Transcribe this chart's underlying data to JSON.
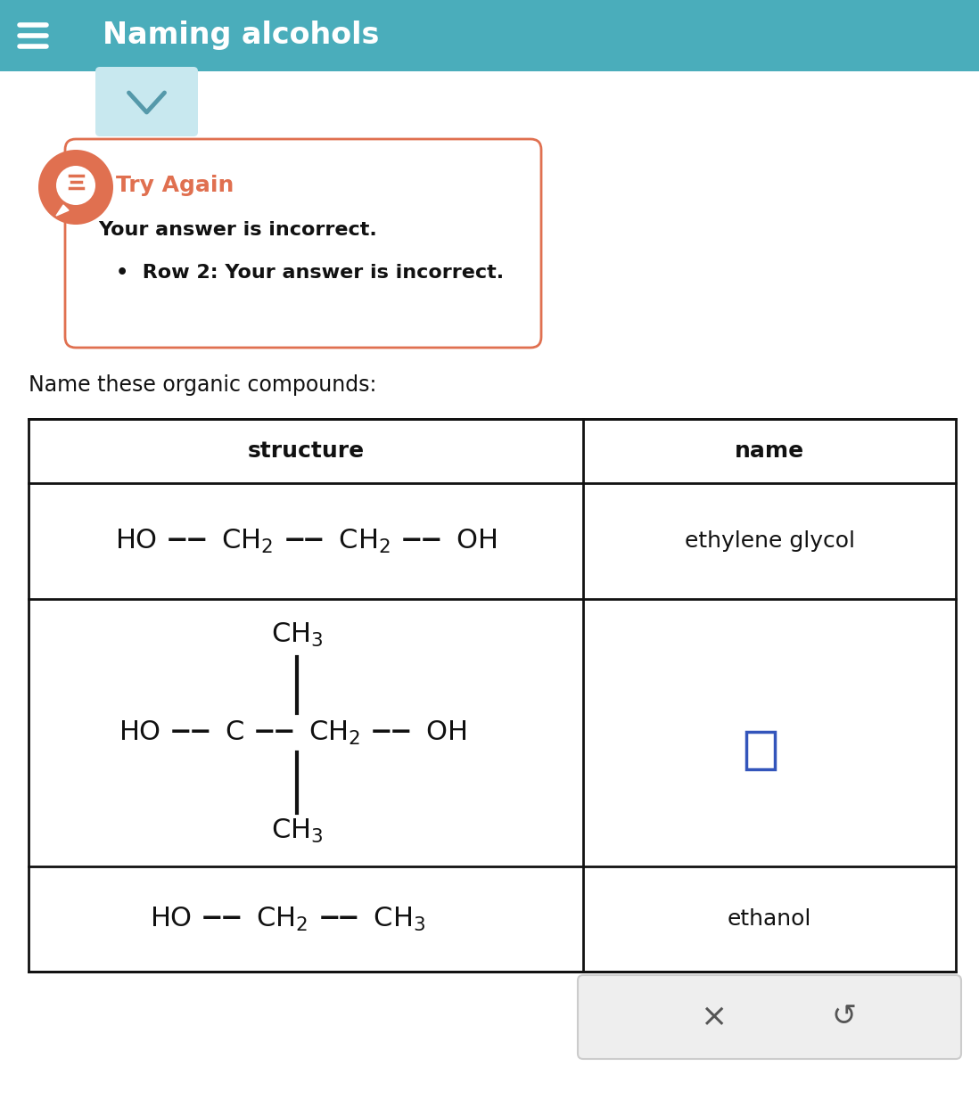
{
  "header_text": "Naming alcohols",
  "header_bg": "#4AADBB",
  "header_text_color": "#ffffff",
  "chevron_color": "#C8E8EF",
  "chevron_border": "#7BBFCC",
  "feedback_box_border": "#E07050",
  "feedback_title": "Try Again",
  "feedback_title_color": "#E07050",
  "feedback_body1": "Your answer is incorrect.",
  "feedback_body2": "•  Row 2: Your answer is incorrect.",
  "feedback_icon_bg": "#E07050",
  "question_text": "Name these organic compounds:",
  "col1_header": "structure",
  "col2_header": "name",
  "table_border": "#111111",
  "row1_name": "ethylene glycol",
  "row3_name": "ethanol",
  "bg_color": "#ffffff",
  "input_box_color": "#3355BB",
  "toolbar_bg": "#EEEEEE",
  "toolbar_border": "#CCCCCC"
}
